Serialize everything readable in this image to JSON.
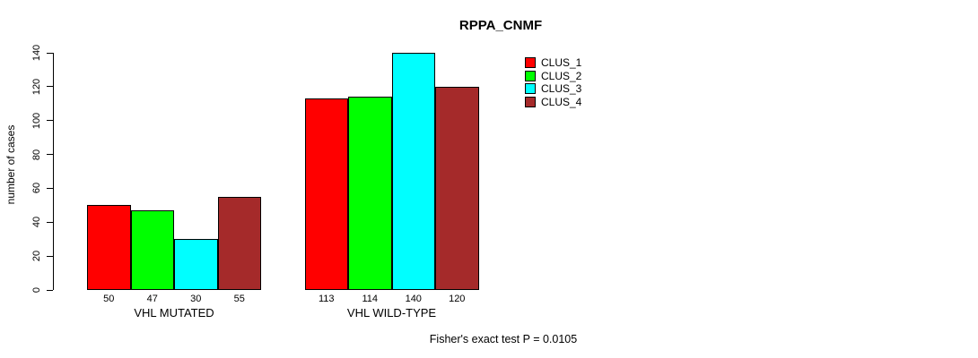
{
  "chart_data": {
    "type": "bar",
    "title": "RPPA_CNMF",
    "ylabel": "number of cases",
    "xlabel": "",
    "ylim": [
      0,
      140
    ],
    "yticks": [
      0,
      20,
      40,
      60,
      80,
      100,
      120,
      140
    ],
    "grid": false,
    "legend_position": "top-right",
    "bar_border_color": "#000000",
    "categories": [
      "VHL MUTATED",
      "VHL WILD-TYPE"
    ],
    "series": [
      {
        "name": "CLUS_1",
        "color": "#ff0000",
        "values": [
          50,
          113
        ]
      },
      {
        "name": "CLUS_2",
        "color": "#00ff00",
        "values": [
          47,
          114
        ]
      },
      {
        "name": "CLUS_3",
        "color": "#00ffff",
        "values": [
          30,
          140
        ]
      },
      {
        "name": "CLUS_4",
        "color": "#a52a2a",
        "values": [
          55,
          120
        ]
      }
    ],
    "bar_value_labels": [
      [
        50,
        47,
        30,
        55
      ],
      [
        113,
        114,
        140,
        120
      ]
    ],
    "annotation": "Fisher's exact test P = 0.0105"
  }
}
